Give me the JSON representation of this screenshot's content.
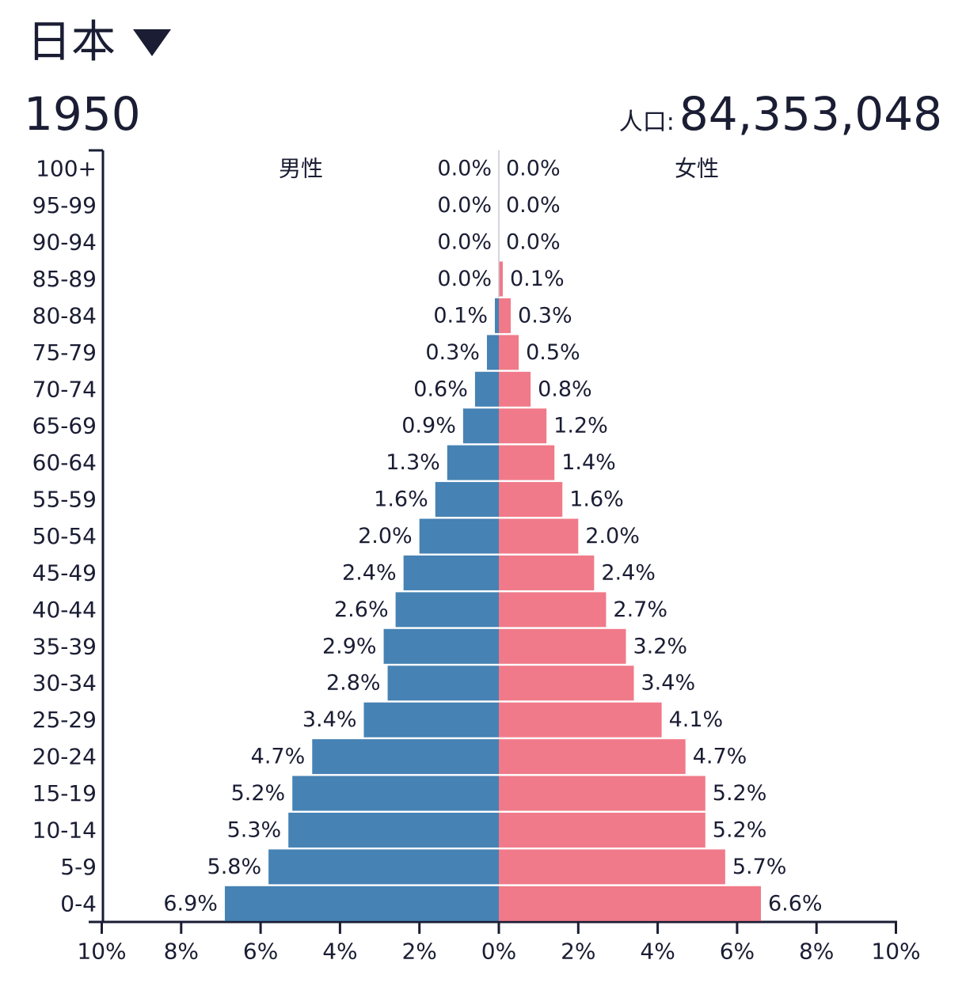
{
  "header": {
    "country": "日本",
    "year": "1950",
    "population_label": "人口:",
    "population_value": "84,353,048"
  },
  "colors": {
    "male": "#4682b4",
    "female": "#f07a89",
    "axis": "#1a1d33"
  },
  "chart_data": {
    "type": "bar",
    "orientation": "horizontal-pyramid",
    "categories": [
      "100+",
      "95-99",
      "90-94",
      "85-89",
      "80-84",
      "75-79",
      "70-74",
      "65-69",
      "60-64",
      "55-59",
      "50-54",
      "45-49",
      "40-44",
      "35-39",
      "30-34",
      "25-29",
      "20-24",
      "15-19",
      "10-14",
      "5-9",
      "0-4"
    ],
    "series": [
      {
        "name": "男性",
        "values": [
          0.0,
          0.0,
          0.0,
          0.0,
          0.1,
          0.3,
          0.6,
          0.9,
          1.3,
          1.6,
          2.0,
          2.4,
          2.6,
          2.9,
          2.8,
          3.4,
          4.7,
          5.2,
          5.3,
          5.8,
          6.9
        ],
        "labels": [
          "0.0%",
          "0.0%",
          "0.0%",
          "0.0%",
          "0.1%",
          "0.3%",
          "0.6%",
          "0.9%",
          "1.3%",
          "1.6%",
          "2.0%",
          "2.4%",
          "2.6%",
          "2.9%",
          "2.8%",
          "3.4%",
          "4.7%",
          "5.2%",
          "5.3%",
          "5.8%",
          "6.9%"
        ]
      },
      {
        "name": "女性",
        "values": [
          0.0,
          0.0,
          0.0,
          0.1,
          0.3,
          0.5,
          0.8,
          1.2,
          1.4,
          1.6,
          2.0,
          2.4,
          2.7,
          3.2,
          3.4,
          4.1,
          4.7,
          5.2,
          5.2,
          5.7,
          6.6
        ],
        "labels": [
          "0.0%",
          "0.0%",
          "0.0%",
          "0.1%",
          "0.3%",
          "0.5%",
          "0.8%",
          "1.2%",
          "1.4%",
          "1.6%",
          "2.0%",
          "2.4%",
          "2.7%",
          "3.2%",
          "3.4%",
          "4.1%",
          "4.7%",
          "5.2%",
          "5.2%",
          "5.7%",
          "6.6%"
        ]
      }
    ],
    "xlim": [
      -10,
      10
    ],
    "xticks": [
      "10%",
      "8%",
      "6%",
      "4%",
      "2%",
      "0%",
      "2%",
      "4%",
      "6%",
      "8%",
      "10%"
    ]
  }
}
